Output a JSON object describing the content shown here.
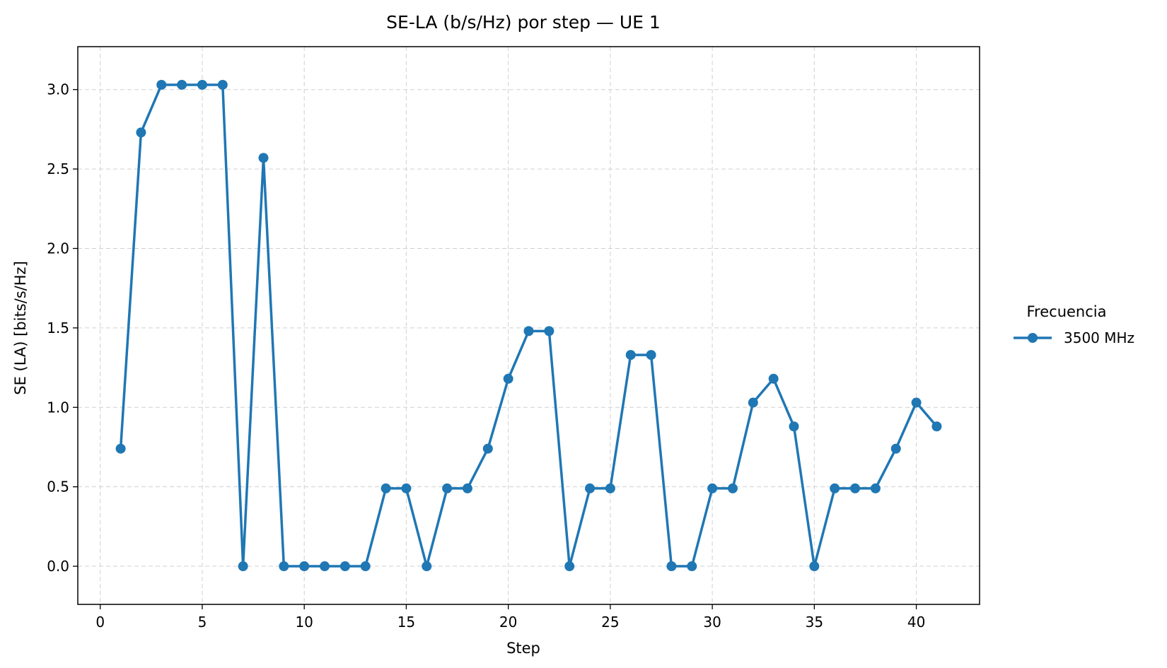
{
  "chart_data": {
    "type": "line",
    "title": "SE-LA (b/s/Hz) por step — UE 1",
    "xlabel": "Step",
    "ylabel": "SE (LA) [bits/s/Hz]",
    "xlim": [
      -1.1,
      43.1
    ],
    "ylim": [
      -0.24,
      3.27
    ],
    "xticks": [
      0,
      5,
      10,
      15,
      20,
      25,
      30,
      35,
      40
    ],
    "xtick_labels": [
      "0",
      "5",
      "10",
      "15",
      "20",
      "25",
      "30",
      "35",
      "40"
    ],
    "yticks": [
      0.0,
      0.5,
      1.0,
      1.5,
      2.0,
      2.5,
      3.0
    ],
    "ytick_labels": [
      "0.0",
      "0.5",
      "1.0",
      "1.5",
      "2.0",
      "2.5",
      "3.0"
    ],
    "grid": true,
    "legend": {
      "title": "Frecuencia",
      "placement": "outside-right"
    },
    "series": [
      {
        "name": "3500 MHz",
        "color": "#1f77b4",
        "marker": "circle",
        "x": [
          1,
          2,
          3,
          4,
          5,
          6,
          7,
          8,
          9,
          10,
          11,
          12,
          13,
          14,
          15,
          16,
          17,
          18,
          19,
          20,
          21,
          22,
          23,
          24,
          25,
          26,
          27,
          28,
          29,
          30,
          31,
          32,
          33,
          34,
          35,
          36,
          37,
          38,
          39,
          40,
          41
        ],
        "y": [
          0.74,
          2.73,
          3.03,
          3.03,
          3.03,
          3.03,
          0.0,
          2.57,
          0.0,
          0.0,
          0.0,
          0.0,
          0.0,
          0.49,
          0.49,
          0.0,
          0.49,
          0.49,
          0.74,
          1.18,
          1.48,
          1.48,
          0.0,
          0.49,
          0.49,
          1.33,
          1.33,
          0.0,
          0.0,
          0.49,
          0.49,
          1.03,
          1.18,
          0.88,
          0.0,
          0.49,
          0.49,
          0.49,
          0.74,
          1.03,
          0.88
        ]
      }
    ]
  }
}
